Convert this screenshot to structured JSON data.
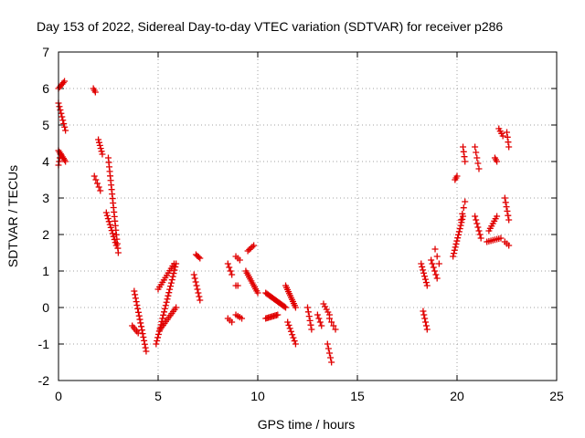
{
  "chart_data": {
    "type": "scatter",
    "title": "Day 153 of 2022, Sidereal Day-to-day VTEC variation (SDTVAR) for receiver p286",
    "xlabel": "GPS time / hours",
    "ylabel": "SDTVAR / TECUs",
    "xlim": [
      0,
      25
    ],
    "ylim": [
      -2,
      7
    ],
    "xticks": [
      "0",
      "5",
      "10",
      "15",
      "20",
      "25"
    ],
    "yticks": [
      "-2",
      "-1",
      "0",
      "1",
      "2",
      "3",
      "4",
      "5",
      "6",
      "7"
    ],
    "grid": true,
    "marker_color": "#e00000",
    "marker": "plus",
    "series": [
      {
        "name": "SDTVAR",
        "segments": [
          {
            "from": [
              0.0,
              6.0
            ],
            "to": [
              0.3,
              6.2
            ],
            "n": 6
          },
          {
            "from": [
              0.0,
              4.3
            ],
            "to": [
              0.35,
              4.0
            ],
            "n": 8
          },
          {
            "from": [
              0.0,
              3.9
            ],
            "to": [
              0.1,
              4.2
            ],
            "n": 4
          },
          {
            "from": [
              0.0,
              5.6
            ],
            "to": [
              0.35,
              4.85
            ],
            "n": 9
          },
          {
            "from": [
              1.75,
              6.0
            ],
            "to": [
              1.85,
              5.9
            ],
            "n": 3
          },
          {
            "from": [
              1.8,
              3.6
            ],
            "to": [
              2.1,
              3.2
            ],
            "n": 5
          },
          {
            "from": [
              2.0,
              4.6
            ],
            "to": [
              2.2,
              4.2
            ],
            "n": 6
          },
          {
            "from": [
              2.5,
              4.1
            ],
            "to": [
              3.0,
              1.5
            ],
            "n": 22
          },
          {
            "from": [
              2.4,
              2.6
            ],
            "to": [
              2.9,
              1.7
            ],
            "n": 12
          },
          {
            "from": [
              3.8,
              0.45
            ],
            "to": [
              4.4,
              -1.2
            ],
            "n": 18
          },
          {
            "from": [
              3.7,
              -0.5
            ],
            "to": [
              4.0,
              -0.7
            ],
            "n": 5
          },
          {
            "from": [
              4.9,
              -1.0
            ],
            "to": [
              5.9,
              1.2
            ],
            "n": 26
          },
          {
            "from": [
              5.0,
              0.5
            ],
            "to": [
              5.8,
              1.2
            ],
            "n": 12
          },
          {
            "from": [
              5.1,
              -0.6
            ],
            "to": [
              5.9,
              0.0
            ],
            "n": 12
          },
          {
            "from": [
              6.9,
              1.45
            ],
            "to": [
              7.1,
              1.35
            ],
            "n": 4
          },
          {
            "from": [
              6.8,
              0.9
            ],
            "to": [
              7.1,
              0.2
            ],
            "n": 8
          },
          {
            "from": [
              8.5,
              1.2
            ],
            "to": [
              8.7,
              0.9
            ],
            "n": 4
          },
          {
            "from": [
              8.5,
              -0.3
            ],
            "to": [
              8.7,
              -0.4
            ],
            "n": 3
          },
          {
            "from": [
              8.9,
              -0.2
            ],
            "to": [
              9.2,
              -0.3
            ],
            "n": 4
          },
          {
            "from": [
              8.9,
              1.4
            ],
            "to": [
              9.1,
              1.3
            ],
            "n": 3
          },
          {
            "from": [
              8.9,
              0.6
            ],
            "to": [
              9.0,
              0.6
            ],
            "n": 2
          },
          {
            "from": [
              9.5,
              1.55
            ],
            "to": [
              9.8,
              1.7
            ],
            "n": 5
          },
          {
            "from": [
              9.4,
              1.0
            ],
            "to": [
              10.0,
              0.4
            ],
            "n": 12
          },
          {
            "from": [
              10.4,
              0.4
            ],
            "to": [
              11.4,
              0.0
            ],
            "n": 18
          },
          {
            "from": [
              10.4,
              -0.3
            ],
            "to": [
              11.0,
              -0.2
            ],
            "n": 10
          },
          {
            "from": [
              11.4,
              0.6
            ],
            "to": [
              11.9,
              0.0
            ],
            "n": 12
          },
          {
            "from": [
              11.5,
              -0.4
            ],
            "to": [
              11.9,
              -1.0
            ],
            "n": 8
          },
          {
            "from": [
              12.5,
              0.0
            ],
            "to": [
              12.7,
              -0.6
            ],
            "n": 6
          },
          {
            "from": [
              13.0,
              -0.2
            ],
            "to": [
              13.2,
              -0.5
            ],
            "n": 4
          },
          {
            "from": [
              13.3,
              0.1
            ],
            "to": [
              13.6,
              -0.2
            ],
            "n": 5
          },
          {
            "from": [
              13.5,
              -1.0
            ],
            "to": [
              13.7,
              -1.5
            ],
            "n": 5
          },
          {
            "from": [
              13.6,
              -0.3
            ],
            "to": [
              13.9,
              -0.6
            ],
            "n": 4
          },
          {
            "from": [
              18.2,
              1.2
            ],
            "to": [
              18.5,
              0.6
            ],
            "n": 8
          },
          {
            "from": [
              18.3,
              -0.1
            ],
            "to": [
              18.5,
              -0.6
            ],
            "n": 6
          },
          {
            "from": [
              18.7,
              1.3
            ],
            "to": [
              19.0,
              0.8
            ],
            "n": 6
          },
          {
            "from": [
              18.9,
              1.6
            ],
            "to": [
              19.1,
              1.2
            ],
            "n": 3
          },
          {
            "from": [
              19.8,
              1.4
            ],
            "to": [
              20.3,
              2.5
            ],
            "n": 14
          },
          {
            "from": [
              19.9,
              3.5
            ],
            "to": [
              20.0,
              3.6
            ],
            "n": 3
          },
          {
            "from": [
              20.3,
              4.4
            ],
            "to": [
              20.4,
              4.0
            ],
            "n": 4
          },
          {
            "from": [
              20.4,
              2.9
            ],
            "to": [
              20.2,
              2.4
            ],
            "n": 4
          },
          {
            "from": [
              20.9,
              4.4
            ],
            "to": [
              21.1,
              3.8
            ],
            "n": 5
          },
          {
            "from": [
              20.9,
              2.5
            ],
            "to": [
              21.2,
              1.9
            ],
            "n": 7
          },
          {
            "from": [
              21.6,
              2.1
            ],
            "to": [
              22.0,
              2.5
            ],
            "n": 7
          },
          {
            "from": [
              21.9,
              4.1
            ],
            "to": [
              22.0,
              4.0
            ],
            "n": 3
          },
          {
            "from": [
              22.1,
              4.9
            ],
            "to": [
              22.3,
              4.7
            ],
            "n": 4
          },
          {
            "from": [
              22.5,
              4.8
            ],
            "to": [
              22.6,
              4.4
            ],
            "n": 4
          },
          {
            "from": [
              22.4,
              3.0
            ],
            "to": [
              22.6,
              2.4
            ],
            "n": 6
          },
          {
            "from": [
              22.4,
              1.8
            ],
            "to": [
              22.6,
              1.7
            ],
            "n": 3
          },
          {
            "from": [
              21.5,
              1.8
            ],
            "to": [
              22.2,
              1.9
            ],
            "n": 8
          }
        ]
      }
    ]
  }
}
